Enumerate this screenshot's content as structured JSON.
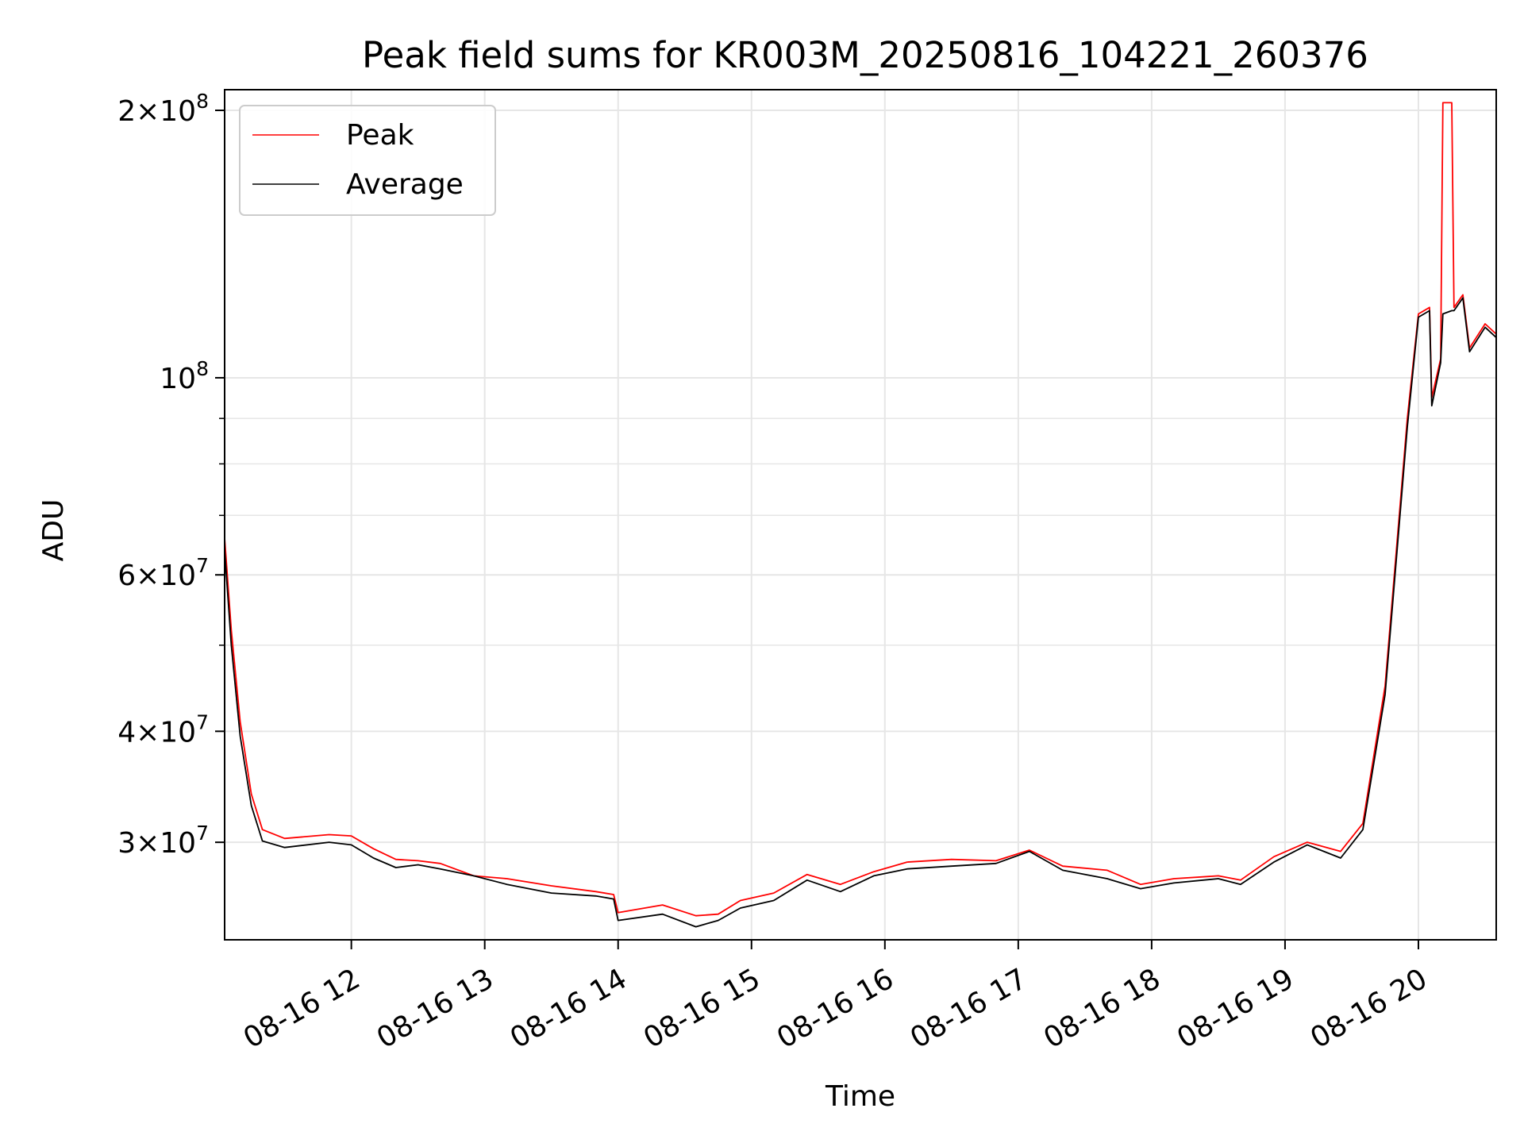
{
  "chart_data": {
    "type": "line",
    "title": "Peak field sums for KR003M_20250816_104221_260376",
    "xlabel": "Time",
    "ylabel": "ADU",
    "y_scale": "log",
    "grid": true,
    "legend_position": "top-left",
    "x_range": [
      "2025-08-16 11:03",
      "2025-08-16 20:35"
    ],
    "ylim": [
      23300000,
      211000000
    ],
    "x_ticks": [
      "08-16 12",
      "08-16 13",
      "08-16 14",
      "08-16 15",
      "08-16 16",
      "08-16 17",
      "08-16 18",
      "08-16 19",
      "08-16 20"
    ],
    "y_ticks": [
      {
        "value": 200000000,
        "mantissa": "2",
        "exponent": "8"
      },
      {
        "value": 100000000,
        "mantissa": "",
        "exponent": "8"
      },
      {
        "value": 60000000,
        "mantissa": "6",
        "exponent": "7"
      },
      {
        "value": 40000000,
        "mantissa": "4",
        "exponent": "7"
      },
      {
        "value": 30000000,
        "mantissa": "3",
        "exponent": "7"
      }
    ],
    "series": [
      {
        "name": "Peak",
        "color": "#ff0000",
        "points": [
          [
            "2025-08-16 11:03",
            66000000
          ],
          [
            "2025-08-16 11:06",
            52000000
          ],
          [
            "2025-08-16 11:10",
            41000000
          ],
          [
            "2025-08-16 11:15",
            34000000
          ],
          [
            "2025-08-16 11:20",
            31000000
          ],
          [
            "2025-08-16 11:30",
            30300000
          ],
          [
            "2025-08-16 11:50",
            30600000
          ],
          [
            "2025-08-16 12:00",
            30500000
          ],
          [
            "2025-08-16 12:10",
            29500000
          ],
          [
            "2025-08-16 12:20",
            28700000
          ],
          [
            "2025-08-16 12:30",
            28600000
          ],
          [
            "2025-08-16 12:40",
            28400000
          ],
          [
            "2025-08-16 12:55",
            27500000
          ],
          [
            "2025-08-16 13:10",
            27300000
          ],
          [
            "2025-08-16 13:30",
            26800000
          ],
          [
            "2025-08-16 13:50",
            26400000
          ],
          [
            "2025-08-16 13:58",
            26200000
          ],
          [
            "2025-08-16 14:00",
            25000000
          ],
          [
            "2025-08-16 14:20",
            25500000
          ],
          [
            "2025-08-16 14:35",
            24800000
          ],
          [
            "2025-08-16 14:45",
            24900000
          ],
          [
            "2025-08-16 14:55",
            25800000
          ],
          [
            "2025-08-16 15:10",
            26300000
          ],
          [
            "2025-08-16 15:25",
            27600000
          ],
          [
            "2025-08-16 15:40",
            26900000
          ],
          [
            "2025-08-16 15:55",
            27800000
          ],
          [
            "2025-08-16 16:10",
            28500000
          ],
          [
            "2025-08-16 16:30",
            28700000
          ],
          [
            "2025-08-16 16:50",
            28600000
          ],
          [
            "2025-08-16 17:05",
            29400000
          ],
          [
            "2025-08-16 17:20",
            28200000
          ],
          [
            "2025-08-16 17:40",
            27900000
          ],
          [
            "2025-08-16 17:55",
            26900000
          ],
          [
            "2025-08-16 18:10",
            27300000
          ],
          [
            "2025-08-16 18:30",
            27500000
          ],
          [
            "2025-08-16 18:40",
            27200000
          ],
          [
            "2025-08-16 18:55",
            28900000
          ],
          [
            "2025-08-16 19:10",
            30000000
          ],
          [
            "2025-08-16 19:25",
            29300000
          ],
          [
            "2025-08-16 19:35",
            31500000
          ],
          [
            "2025-08-16 19:45",
            45000000
          ],
          [
            "2025-08-16 19:55",
            90000000
          ],
          [
            "2025-08-16 20:00",
            118000000
          ],
          [
            "2025-08-16 20:05",
            120000000
          ],
          [
            "2025-08-16 20:06",
            95000000
          ],
          [
            "2025-08-16 20:10",
            105000000
          ],
          [
            "2025-08-16 20:11",
            204000000
          ],
          [
            "2025-08-16 20:15",
            204000000
          ],
          [
            "2025-08-16 20:16",
            120000000
          ],
          [
            "2025-08-16 20:20",
            124000000
          ],
          [
            "2025-08-16 20:23",
            108000000
          ],
          [
            "2025-08-16 20:30",
            115000000
          ],
          [
            "2025-08-16 20:35",
            112000000
          ]
        ]
      },
      {
        "name": "Average",
        "color": "#000000",
        "points": [
          [
            "2025-08-16 11:03",
            64000000
          ],
          [
            "2025-08-16 11:06",
            50000000
          ],
          [
            "2025-08-16 11:10",
            39500000
          ],
          [
            "2025-08-16 11:15",
            33000000
          ],
          [
            "2025-08-16 11:20",
            30100000
          ],
          [
            "2025-08-16 11:30",
            29600000
          ],
          [
            "2025-08-16 11:50",
            30000000
          ],
          [
            "2025-08-16 12:00",
            29800000
          ],
          [
            "2025-08-16 12:10",
            28800000
          ],
          [
            "2025-08-16 12:20",
            28100000
          ],
          [
            "2025-08-16 12:30",
            28300000
          ],
          [
            "2025-08-16 12:40",
            28000000
          ],
          [
            "2025-08-16 12:55",
            27500000
          ],
          [
            "2025-08-16 13:10",
            26900000
          ],
          [
            "2025-08-16 13:30",
            26300000
          ],
          [
            "2025-08-16 13:50",
            26100000
          ],
          [
            "2025-08-16 13:58",
            25900000
          ],
          [
            "2025-08-16 14:00",
            24500000
          ],
          [
            "2025-08-16 14:20",
            24900000
          ],
          [
            "2025-08-16 14:35",
            24100000
          ],
          [
            "2025-08-16 14:45",
            24500000
          ],
          [
            "2025-08-16 14:55",
            25300000
          ],
          [
            "2025-08-16 15:10",
            25800000
          ],
          [
            "2025-08-16 15:25",
            27200000
          ],
          [
            "2025-08-16 15:40",
            26400000
          ],
          [
            "2025-08-16 15:55",
            27500000
          ],
          [
            "2025-08-16 16:10",
            28000000
          ],
          [
            "2025-08-16 16:30",
            28200000
          ],
          [
            "2025-08-16 16:50",
            28400000
          ],
          [
            "2025-08-16 17:05",
            29300000
          ],
          [
            "2025-08-16 17:20",
            27900000
          ],
          [
            "2025-08-16 17:40",
            27300000
          ],
          [
            "2025-08-16 17:55",
            26600000
          ],
          [
            "2025-08-16 18:10",
            27000000
          ],
          [
            "2025-08-16 18:30",
            27300000
          ],
          [
            "2025-08-16 18:40",
            26900000
          ],
          [
            "2025-08-16 18:55",
            28500000
          ],
          [
            "2025-08-16 19:10",
            29800000
          ],
          [
            "2025-08-16 19:25",
            28800000
          ],
          [
            "2025-08-16 19:35",
            31000000
          ],
          [
            "2025-08-16 19:45",
            44000000
          ],
          [
            "2025-08-16 19:55",
            88000000
          ],
          [
            "2025-08-16 20:00",
            117000000
          ],
          [
            "2025-08-16 20:05",
            119000000
          ],
          [
            "2025-08-16 20:06",
            93000000
          ],
          [
            "2025-08-16 20:10",
            104000000
          ],
          [
            "2025-08-16 20:11",
            118000000
          ],
          [
            "2025-08-16 20:15",
            119000000
          ],
          [
            "2025-08-16 20:16",
            119000000
          ],
          [
            "2025-08-16 20:20",
            123000000
          ],
          [
            "2025-08-16 20:23",
            107000000
          ],
          [
            "2025-08-16 20:30",
            114000000
          ],
          [
            "2025-08-16 20:35",
            111000000
          ]
        ]
      }
    ]
  }
}
